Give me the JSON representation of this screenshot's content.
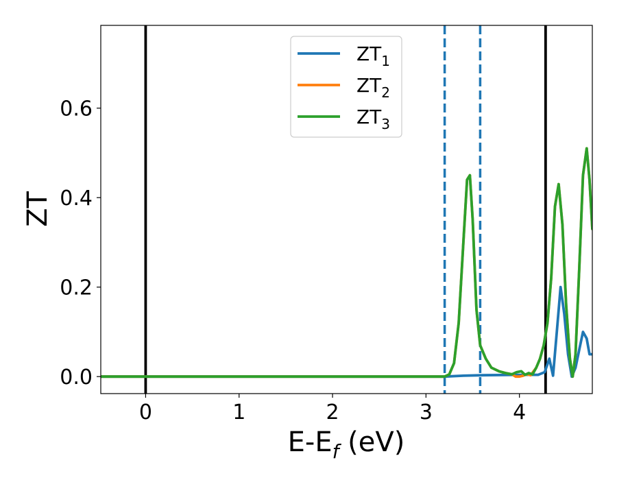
{
  "chart_data": {
    "type": "line",
    "title": "",
    "xlabel": "E-E",
    "xlabel_sub": "f",
    "xlabel_unit": " (eV)",
    "ylabel": "ZT",
    "xlim": [
      -0.48,
      4.78
    ],
    "ylim": [
      -0.038,
      0.785
    ],
    "grid": false,
    "legend_position": "top-center",
    "x_ticks": [
      0,
      1,
      2,
      3,
      4
    ],
    "x_tick_labels": [
      "0",
      "1",
      "2",
      "3",
      "4"
    ],
    "y_ticks": [
      0.0,
      0.2,
      0.4,
      0.6
    ],
    "y_tick_labels": [
      "0.0",
      "0.2",
      "0.4",
      "0.6"
    ],
    "vlines": [
      {
        "x": 0.0,
        "style": "solid",
        "color": "#000000"
      },
      {
        "x": 3.2,
        "style": "dashed",
        "color": "#1f77b4"
      },
      {
        "x": 3.58,
        "style": "dashed",
        "color": "#1f77b4"
      },
      {
        "x": 4.28,
        "style": "solid",
        "color": "#000000"
      }
    ],
    "series": [
      {
        "name": "ZT",
        "name_sub": "1",
        "color": "#1f77b4",
        "x": [
          -0.48,
          3.2,
          3.4,
          3.6,
          4.0,
          4.2,
          4.27,
          4.32,
          4.36,
          4.4,
          4.44,
          4.48,
          4.52,
          4.56,
          4.6,
          4.64,
          4.68,
          4.72,
          4.75,
          4.78
        ],
        "y": [
          0.0,
          0.0,
          0.002,
          0.003,
          0.004,
          0.004,
          0.01,
          0.04,
          0.002,
          0.1,
          0.2,
          0.14,
          0.05,
          0.0,
          0.02,
          0.06,
          0.1,
          0.085,
          0.05,
          0.05
        ]
      },
      {
        "name": "ZT",
        "name_sub": "2",
        "color": "#ff7f0e",
        "x": [
          -0.48,
          3.2,
          3.25,
          3.3,
          3.35,
          3.4,
          3.44,
          3.47,
          3.5,
          3.54,
          3.58,
          3.64,
          3.7,
          3.78,
          3.85,
          3.92,
          3.96,
          4.0,
          4.04,
          4.08,
          4.12,
          4.18,
          4.22,
          4.26,
          4.3,
          4.34,
          4.38,
          4.42,
          4.46,
          4.5,
          4.54,
          4.57,
          4.6,
          4.64,
          4.68,
          4.72,
          4.75,
          4.78
        ],
        "y": [
          0.0,
          0.0,
          0.005,
          0.03,
          0.12,
          0.3,
          0.44,
          0.45,
          0.35,
          0.15,
          0.07,
          0.04,
          0.02,
          0.012,
          0.008,
          0.005,
          0.0,
          0.0,
          0.002,
          0.005,
          0.003,
          0.02,
          0.04,
          0.07,
          0.12,
          0.22,
          0.38,
          0.43,
          0.34,
          0.16,
          0.04,
          0.0,
          0.05,
          0.24,
          0.45,
          0.51,
          0.44,
          0.33
        ]
      },
      {
        "name": "ZT",
        "name_sub": "3",
        "color": "#2ca02c",
        "x": [
          -0.48,
          3.2,
          3.25,
          3.3,
          3.35,
          3.4,
          3.44,
          3.47,
          3.5,
          3.54,
          3.58,
          3.64,
          3.7,
          3.78,
          3.85,
          3.92,
          3.97,
          4.02,
          4.06,
          4.1,
          4.14,
          4.18,
          4.22,
          4.26,
          4.3,
          4.34,
          4.38,
          4.42,
          4.46,
          4.5,
          4.54,
          4.57,
          4.6,
          4.64,
          4.68,
          4.72,
          4.75,
          4.78
        ],
        "y": [
          0.0,
          0.0,
          0.005,
          0.03,
          0.12,
          0.3,
          0.44,
          0.45,
          0.35,
          0.15,
          0.07,
          0.04,
          0.02,
          0.012,
          0.008,
          0.005,
          0.01,
          0.012,
          0.004,
          0.008,
          0.005,
          0.02,
          0.04,
          0.07,
          0.12,
          0.22,
          0.38,
          0.43,
          0.34,
          0.16,
          0.04,
          0.0,
          0.05,
          0.24,
          0.45,
          0.51,
          0.44,
          0.33
        ]
      }
    ]
  }
}
